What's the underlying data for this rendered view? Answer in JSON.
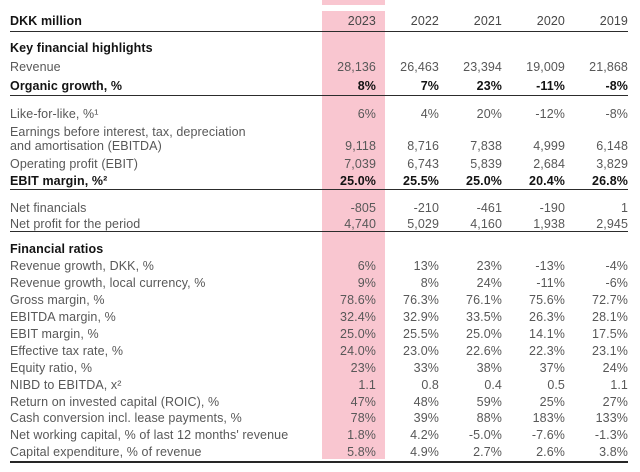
{
  "highlight": {
    "year": "2023",
    "color": "#f9c6d0"
  },
  "table": {
    "header": {
      "unit_label": "DKK million",
      "years": [
        "2023",
        "2022",
        "2021",
        "2020",
        "2019"
      ]
    },
    "section1_title": "Key financial highlights",
    "section2_title": "Financial ratios",
    "rows": [
      {
        "label": "Revenue",
        "values": [
          "28,136",
          "26,463",
          "23,394",
          "19,009",
          "21,868"
        ]
      },
      {
        "label": "Organic growth, %",
        "values": [
          "8%",
          "7%",
          "23%",
          "-11%",
          "-8%"
        ]
      },
      {
        "label": "Like-for-like, %¹",
        "values": [
          "6%",
          "4%",
          "20%",
          "-12%",
          "-8%"
        ]
      },
      {
        "label": "Earnings before interest, tax, depreciation",
        "label2": "and amortisation (EBITDA)",
        "values": [
          "9,118",
          "8,716",
          "7,838",
          "4,999",
          "6,148"
        ]
      },
      {
        "label": "Operating profit (EBIT)",
        "values": [
          "7,039",
          "6,743",
          "5,839",
          "2,684",
          "3,829"
        ]
      },
      {
        "label": "EBIT margin, %²",
        "values": [
          "25.0%",
          "25.5%",
          "25.0%",
          "20.4%",
          "26.8%"
        ]
      },
      {
        "label": "Net financials",
        "values": [
          "-805",
          "-210",
          "-461",
          "-190",
          "1"
        ]
      },
      {
        "label": "Net profit for the period",
        "values": [
          "4,740",
          "5,029",
          "4,160",
          "1,938",
          "2,945"
        ]
      },
      {
        "label": "Revenue growth, DKK, %",
        "values": [
          "6%",
          "13%",
          "23%",
          "-13%",
          "-4%"
        ]
      },
      {
        "label": "Revenue growth, local currency, %",
        "values": [
          "9%",
          "8%",
          "24%",
          "-11%",
          "-6%"
        ]
      },
      {
        "label": "Gross margin, %",
        "values": [
          "78.6%",
          "76.3%",
          "76.1%",
          "75.6%",
          "72.7%"
        ]
      },
      {
        "label": "EBITDA margin, %",
        "values": [
          "32.4%",
          "32.9%",
          "33.5%",
          "26.3%",
          "28.1%"
        ]
      },
      {
        "label": "EBIT margin, %",
        "values": [
          "25.0%",
          "25.5%",
          "25.0%",
          "14.1%",
          "17.5%"
        ]
      },
      {
        "label": "Effective tax rate, %",
        "values": [
          "24.0%",
          "23.0%",
          "22.6%",
          "22.3%",
          "23.1%"
        ]
      },
      {
        "label": "Equity ratio, %",
        "values": [
          "23%",
          "33%",
          "38%",
          "37%",
          "24%"
        ]
      },
      {
        "label": "NIBD to EBITDA, x²",
        "values": [
          "1.1",
          "0.8",
          "0.4",
          "0.5",
          "1.1"
        ]
      },
      {
        "label": "Return on invested capital (ROIC), %",
        "values": [
          "47%",
          "48%",
          "59%",
          "25%",
          "27%"
        ]
      },
      {
        "label": "Cash conversion incl. lease payments, %",
        "values": [
          "78%",
          "39%",
          "88%",
          "183%",
          "133%"
        ]
      },
      {
        "label": "Net working capital, % of last 12 months' revenue",
        "values": [
          "1.8%",
          "4.2%",
          "-5.0%",
          "-7.6%",
          "-1.3%"
        ]
      },
      {
        "label": "Capital expenditure, % of revenue",
        "values": [
          "5.8%",
          "4.9%",
          "2.7%",
          "2.6%",
          "3.8%"
        ]
      }
    ]
  }
}
